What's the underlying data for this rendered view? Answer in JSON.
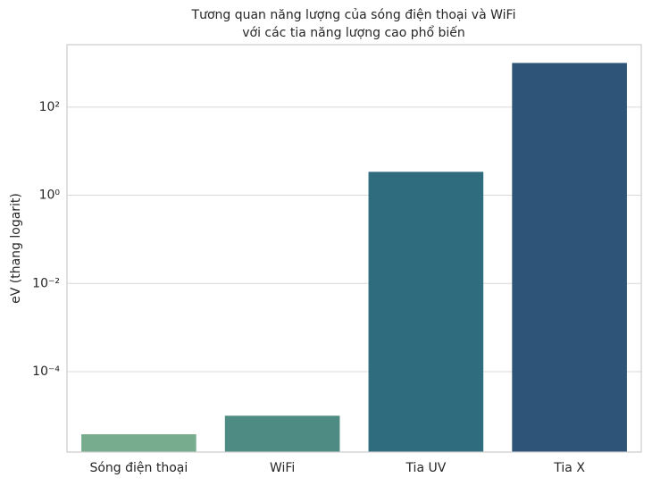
{
  "chart_data": {
    "type": "bar",
    "title": [
      "Tương quan năng lượng của sóng điện thoại và WiFi",
      "với các tia năng lượng cao phổ biến"
    ],
    "y_label": "eV (thang logarit)",
    "categories": [
      "Sóng điện thoại",
      "WiFi",
      "Tia UV",
      "Tia X"
    ],
    "values": [
      3.8e-06,
      1e-05,
      3.4,
      1000
    ],
    "colors": [
      "#78ac8f",
      "#4e8c83",
      "#2f6d7e",
      "#2e5478"
    ],
    "log_scale": true,
    "ylim": [
      1.5e-06,
      2600
    ],
    "yticks": [
      {
        "value": 0.0001,
        "label": "10⁻⁴"
      },
      {
        "value": 0.01,
        "label": "10⁻²"
      },
      {
        "value": 1,
        "label": "10⁰"
      },
      {
        "value": 100,
        "label": "10²"
      }
    ],
    "grid": true
  }
}
